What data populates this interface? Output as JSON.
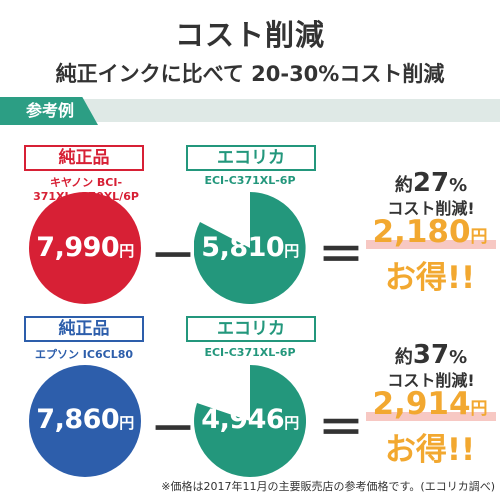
{
  "header": {
    "title": "コスト削減",
    "subtitle": "純正インクに比べて 20-30%コスト削減"
  },
  "example_label": "参考例",
  "colors": {
    "red": "#d72035",
    "green": "#23977c",
    "blue": "#2d5eab",
    "orange": "#f2a830"
  },
  "rows": [
    {
      "genuine_label": "純正品",
      "genuine_model": "キヤノン BCI-371XL+370XL/6P",
      "genuine_price": "7,990",
      "alt_label": "エコリカ",
      "alt_model": "ECI-C371XL-6P",
      "alt_price": "5,810",
      "minus": "－",
      "equals": "＝",
      "yen": "円",
      "save_prefix": "約",
      "save_percent": "27",
      "percent_sign": "%",
      "save_text": "コスト削減!",
      "save_amount": "2,180",
      "otoku": "お得!!"
    },
    {
      "genuine_label": "純正品",
      "genuine_model": "エプソン IC6CL80",
      "genuine_price": "7,860",
      "alt_label": "エコリカ",
      "alt_model": "ECI-C371XL-6P",
      "alt_price": "4,946",
      "minus": "－",
      "equals": "＝",
      "yen": "円",
      "save_prefix": "約",
      "save_percent": "37",
      "percent_sign": "%",
      "save_text": "コスト削減!",
      "save_amount": "2,914",
      "otoku": "お得!!"
    }
  ],
  "footnote": "※価格は2017年11月の主要販売店の参考価格です。(エコリカ調べ)"
}
